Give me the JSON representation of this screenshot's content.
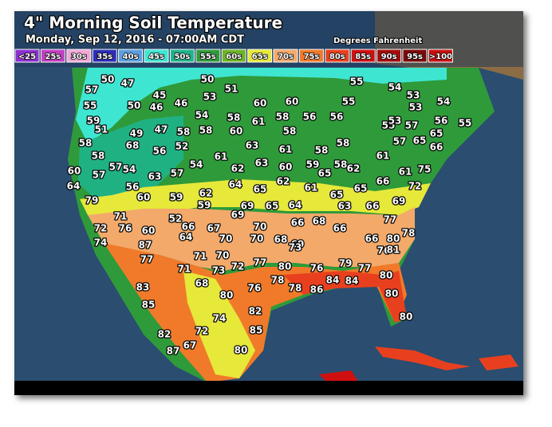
{
  "header": {
    "title": "4\" Morning Soil Temperature",
    "subtitle": "Monday, Sep 12, 2016 - 07:00AM CDT",
    "units": "Degrees Fahrenheit"
  },
  "legend": [
    {
      "label": "<25",
      "color": "#8e2fd0"
    },
    {
      "label": "25s",
      "color": "#c33fc3"
    },
    {
      "label": "30s",
      "color": "#f2a6d6"
    },
    {
      "label": "35s",
      "color": "#2d2db8"
    },
    {
      "label": "40s",
      "color": "#5a9ee0"
    },
    {
      "label": "45s",
      "color": "#3ee6d2"
    },
    {
      "label": "50s",
      "color": "#1fb48c"
    },
    {
      "label": "55s",
      "color": "#2f9a3a"
    },
    {
      "label": "60s",
      "color": "#6cb526"
    },
    {
      "label": "65s",
      "color": "#e6e83a"
    },
    {
      "label": "70s",
      "color": "#f3a96a"
    },
    {
      "label": "75s",
      "color": "#f07a2a"
    },
    {
      "label": "80s",
      "color": "#e8401f"
    },
    {
      "label": "85s",
      "color": "#d01010"
    },
    {
      "label": "90s",
      "color": "#a40c0c"
    },
    {
      "label": "95s",
      "color": "#7c0808"
    },
    {
      "label": ">100",
      "color": "#c80e0e"
    }
  ],
  "stations": [
    50,
    47,
    57,
    55,
    59,
    51,
    58,
    58,
    60,
    57,
    57,
    54,
    64,
    79,
    56,
    60,
    63,
    57,
    59,
    62,
    59,
    52,
    50,
    53,
    51,
    45,
    46,
    46,
    50,
    54,
    58,
    60,
    60,
    61,
    58,
    56,
    56,
    58,
    58,
    58,
    68,
    49,
    56,
    52,
    47,
    58,
    58,
    60,
    61,
    63,
    61,
    54,
    62,
    63,
    60,
    59,
    65,
    58,
    62,
    64,
    65,
    62,
    64,
    61,
    65,
    65,
    66,
    61,
    75,
    61,
    57,
    65,
    66,
    65,
    56,
    57,
    55,
    53,
    53,
    54,
    53,
    54,
    55,
    55,
    55,
    71,
    72,
    76,
    60,
    87,
    66,
    64,
    67,
    70,
    69,
    69,
    70,
    65,
    70,
    68,
    66,
    69,
    68,
    66,
    63,
    66,
    77,
    78,
    66,
    80,
    76,
    72,
    69,
    74,
    77,
    71,
    71,
    70,
    73,
    72,
    77,
    80,
    73,
    76,
    79,
    77,
    81,
    80,
    78,
    78,
    86,
    84,
    84,
    83,
    85,
    68,
    80,
    76,
    82,
    74,
    85,
    82,
    87,
    72,
    67,
    80,
    80,
    80
  ]
}
